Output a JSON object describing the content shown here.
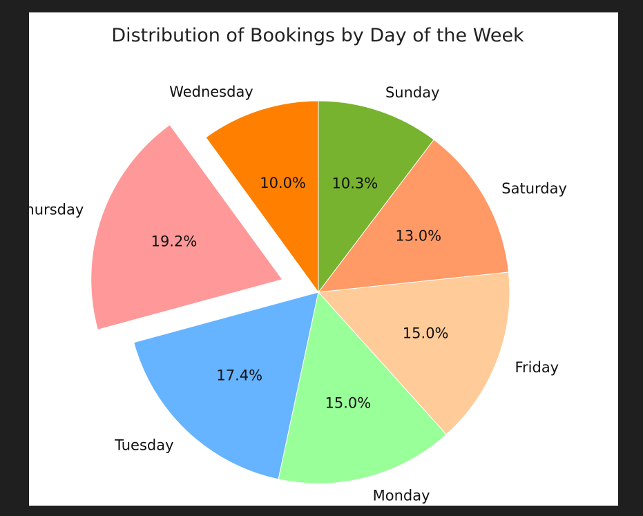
{
  "chart_data": {
    "type": "pie",
    "title": "Distribution of Bookings by Day of the Week",
    "categories": [
      "Wednesday",
      "Thursday",
      "Tuesday",
      "Monday",
      "Friday",
      "Saturday",
      "Sunday"
    ],
    "values": [
      10.0,
      19.2,
      17.4,
      15.0,
      15.0,
      13.0,
      10.3
    ],
    "value_labels": [
      "10.0%",
      "19.2%",
      "17.4%",
      "15.0%",
      "15.0%",
      "13.0%",
      "10.3%"
    ],
    "colors": [
      "#ff7f00",
      "#ff9999",
      "#66b3ff",
      "#99ff99",
      "#ffcc99",
      "#ff9966",
      "#77b32e"
    ],
    "exploded": [
      "Thursday"
    ],
    "start_angle": 90,
    "direction": "counterclockwise",
    "legend": "none"
  }
}
